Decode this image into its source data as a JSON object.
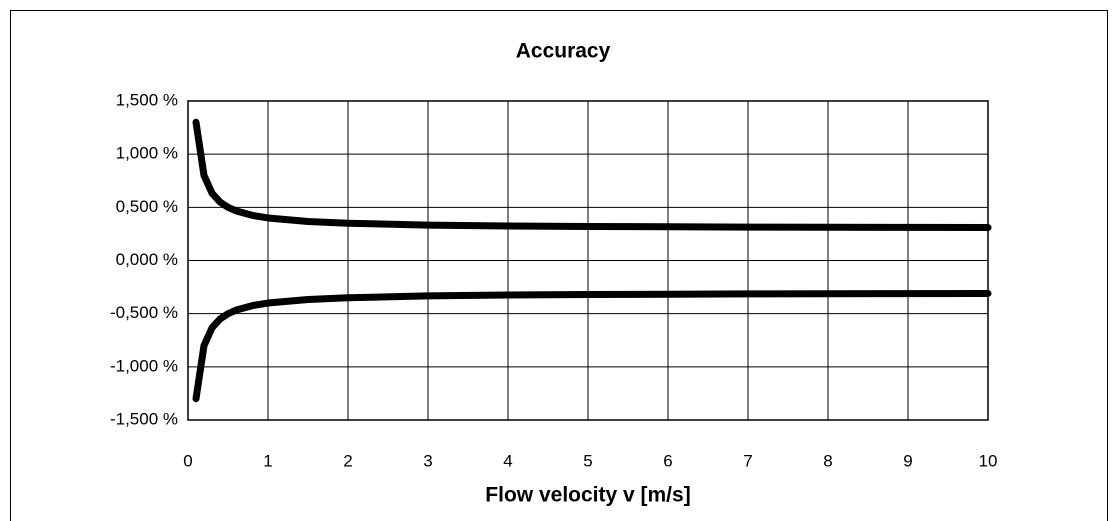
{
  "chart_data": {
    "type": "line",
    "title": "Accuracy",
    "x_label": "Flow velocity v [m/s]",
    "x": [
      0.1,
      0.2,
      0.3,
      0.4,
      0.5,
      0.6,
      0.8,
      1,
      1.5,
      2,
      3,
      4,
      5,
      6,
      7,
      8,
      9,
      10
    ],
    "series": [
      {
        "color": "#000000",
        "values": [
          1.3,
          0.8,
          0.633,
          0.55,
          0.5,
          0.467,
          0.425,
          0.4,
          0.367,
          0.35,
          0.333,
          0.325,
          0.32,
          0.317,
          0.314,
          0.313,
          0.311,
          0.31
        ]
      },
      {
        "color": "#000000",
        "values": [
          -1.3,
          -0.8,
          -0.633,
          -0.55,
          -0.5,
          -0.467,
          -0.425,
          -0.4,
          -0.367,
          -0.35,
          -0.333,
          -0.325,
          -0.32,
          -0.317,
          -0.314,
          -0.313,
          -0.311,
          -0.31
        ]
      }
    ],
    "xlim": [
      0,
      10
    ],
    "xticks": [
      0,
      1,
      2,
      3,
      4,
      5,
      6,
      7,
      8,
      9,
      10
    ],
    "ylim": [
      -1.5,
      1.5
    ],
    "yticks": [
      {
        "value": -1.5,
        "label": "-1,500 %"
      },
      {
        "value": -1,
        "label": "-1,000 %"
      },
      {
        "value": -0.5,
        "label": "-0,500 %"
      },
      {
        "value": 0,
        "label": "0,000 %"
      },
      {
        "value": 0.5,
        "label": "0,500 %"
      },
      {
        "value": 1,
        "label": "1,000 %"
      },
      {
        "value": 1.5,
        "label": "1,500 %"
      }
    ],
    "grid": true
  }
}
